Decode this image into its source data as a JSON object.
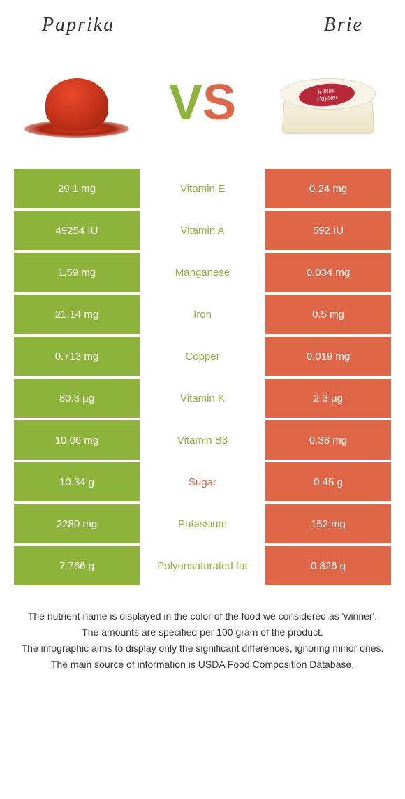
{
  "header": {
    "left": "Paprika",
    "right": "Brie"
  },
  "vs": {
    "v": "V",
    "s": "S"
  },
  "brie_label": {
    "line1": "le BRIE",
    "line2": "Paysan"
  },
  "colors": {
    "paprika_bg": "#8eb33b",
    "brie_bg": "#e06648",
    "winner_paprika_text": "#8eb33b",
    "winner_brie_text": "#e06648"
  },
  "rows": [
    {
      "left": "29.1 mg",
      "mid": "Vitamin E",
      "right": "0.24 mg",
      "winner": "paprika"
    },
    {
      "left": "49254 IU",
      "mid": "Vitamin A",
      "right": "592 IU",
      "winner": "paprika"
    },
    {
      "left": "1.59 mg",
      "mid": "Manganese",
      "right": "0.034 mg",
      "winner": "paprika"
    },
    {
      "left": "21.14 mg",
      "mid": "Iron",
      "right": "0.5 mg",
      "winner": "paprika"
    },
    {
      "left": "0.713 mg",
      "mid": "Copper",
      "right": "0.019 mg",
      "winner": "paprika"
    },
    {
      "left": "80.3 µg",
      "mid": "Vitamin K",
      "right": "2.3 µg",
      "winner": "paprika"
    },
    {
      "left": "10.06 mg",
      "mid": "Vitamin B3",
      "right": "0.38 mg",
      "winner": "paprika"
    },
    {
      "left": "10.34 g",
      "mid": "Sugar",
      "right": "0.45 g",
      "winner": "brie"
    },
    {
      "left": "2280 mg",
      "mid": "Potassium",
      "right": "152 mg",
      "winner": "paprika"
    },
    {
      "left": "7.766 g",
      "mid": "Polyunsaturated fat",
      "right": "0.826 g",
      "winner": "paprika"
    }
  ],
  "footer": {
    "line1": "The nutrient name is displayed in the color of the food we considered as 'winner'.",
    "line2": "The amounts are specified per 100 gram of the product.",
    "line3": "The infographic aims to display only the significant differences, ignoring minor ones.",
    "line4": "The main source of information is USDA Food Composition Database."
  }
}
